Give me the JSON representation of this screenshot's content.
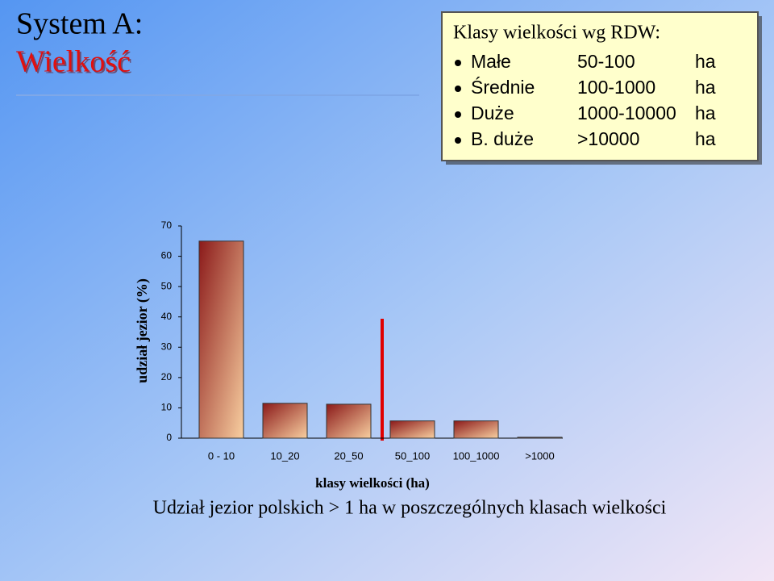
{
  "slide": {
    "title_line1": "System A:",
    "title_line2": "Wielkość",
    "box": {
      "title": "Klasy wielkości wg RDW:",
      "rows": [
        [
          "Małe",
          "50-100",
          "ha"
        ],
        [
          "Średnie",
          "100-1000",
          "ha"
        ],
        [
          "Duże",
          "1000-10000",
          "ha"
        ],
        [
          "B. duże",
          ">10000",
          "ha"
        ]
      ]
    },
    "caption": "Udział jezior polskich > 1 ha w poszczególnych klasach wielkości"
  },
  "chart_data": {
    "type": "bar",
    "categories": [
      "0 - 10",
      "10_20",
      "20_50",
      "50_100",
      "100_1000",
      ">1000"
    ],
    "values": [
      65,
      11.5,
      11.2,
      5.7,
      5.7,
      0.3
    ],
    "ylim": [
      0,
      70
    ],
    "yticks": [
      0,
      10,
      20,
      30,
      40,
      50,
      60,
      70
    ],
    "x_label": "klasy wielkości (ha)",
    "y_label": "udział jezior (%)",
    "color_top": "#8b1a1a",
    "color_bottom": "#f8cfa0"
  }
}
